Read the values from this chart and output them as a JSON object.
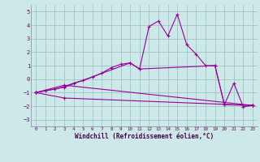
{
  "background_color": "#cde8e8",
  "grid_color": "#a0c4c4",
  "line_color": "#990099",
  "xlim": [
    -0.5,
    23.5
  ],
  "ylim": [
    -3.5,
    5.5
  ],
  "yticks": [
    -3,
    -2,
    -1,
    0,
    1,
    2,
    3,
    4,
    5
  ],
  "xticks": [
    0,
    1,
    2,
    3,
    4,
    5,
    6,
    7,
    8,
    9,
    10,
    11,
    12,
    13,
    14,
    15,
    16,
    17,
    18,
    19,
    20,
    21,
    22,
    23
  ],
  "xlabel": "Windchill (Refroidissement éolien,°C)",
  "series": [
    {
      "x": [
        0,
        1,
        2,
        3,
        4,
        5,
        6,
        7,
        8,
        9,
        10,
        11,
        12,
        13,
        14,
        15,
        16,
        17,
        18,
        19,
        20,
        21,
        22,
        23
      ],
      "y": [
        -1.0,
        -0.85,
        -0.75,
        -0.55,
        -0.3,
        -0.1,
        0.15,
        0.45,
        0.85,
        1.1,
        1.2,
        0.75,
        3.9,
        4.3,
        3.2,
        4.8,
        2.55,
        1.85,
        1.0,
        1.0,
        -1.9,
        -0.3,
        -2.05,
        -1.95
      ]
    },
    {
      "x": [
        0,
        3,
        23
      ],
      "y": [
        -1.0,
        -0.45,
        -1.95
      ]
    },
    {
      "x": [
        0,
        3,
        10,
        11,
        19,
        20,
        23
      ],
      "y": [
        -1.0,
        -0.6,
        1.2,
        0.75,
        1.0,
        -1.9,
        -1.95
      ]
    },
    {
      "x": [
        0,
        3,
        23
      ],
      "y": [
        -1.0,
        -1.4,
        -1.95
      ]
    }
  ]
}
